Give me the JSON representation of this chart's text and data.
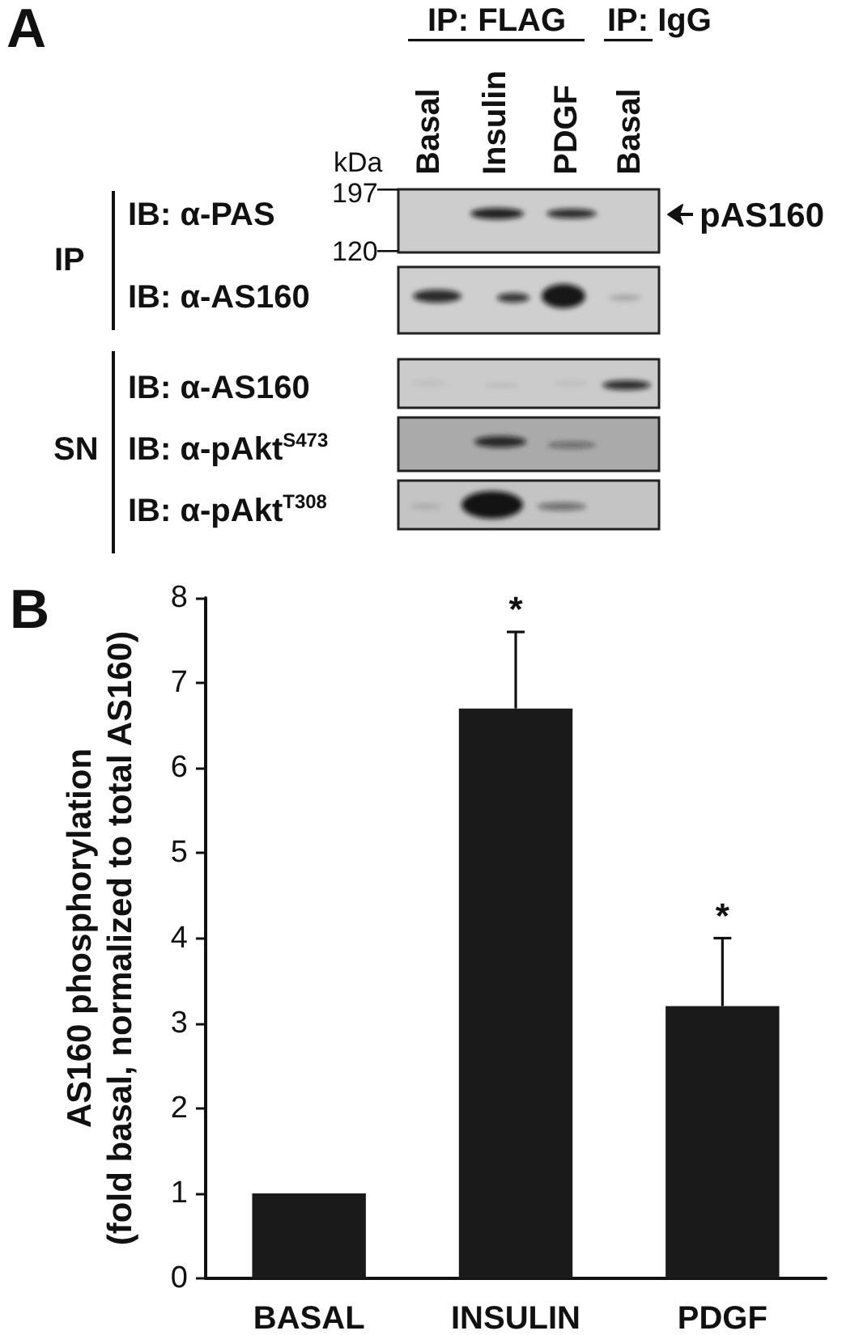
{
  "chart_data": [
    {
      "type": "other",
      "title": "A",
      "annotations": [
        "IP: FLAG",
        "IP: IgG",
        "Basal",
        "Insulin",
        "PDGF",
        "Basal",
        "kDa",
        "197",
        "120",
        "pAS160",
        "IP",
        "IB: α-PAS",
        "IB: α-AS160",
        "SN",
        "IB: α-AS160",
        "IB: α-pAkt$^{S473}$",
        "IB: α-pAkt$^{T308}$"
      ]
    },
    {
      "type": "bar",
      "title": "B",
      "categories": [
        "BASAL",
        "INSULIN",
        "PDGF"
      ],
      "values": [
        1.0,
        6.7,
        3.2
      ],
      "color": "#1a1a1a",
      "errors": [
        null,
        [
          6.7,
          7.6
        ],
        [
          3.2,
          4.0
        ]
      ],
      "ylabel": "AS160 phosphorylation\n(fold basal, normalized to total AS160)",
      "ylim": [
        0,
        8
      ],
      "yticks": [
        0,
        1,
        2,
        3,
        4,
        5,
        6,
        7,
        8
      ],
      "annotations": [
        {
          "text": "*",
          "x": "INSULIN",
          "y": 6.7
        },
        {
          "text": "*",
          "x": "PDGF",
          "y": 3.2
        }
      ]
    }
  ]
}
